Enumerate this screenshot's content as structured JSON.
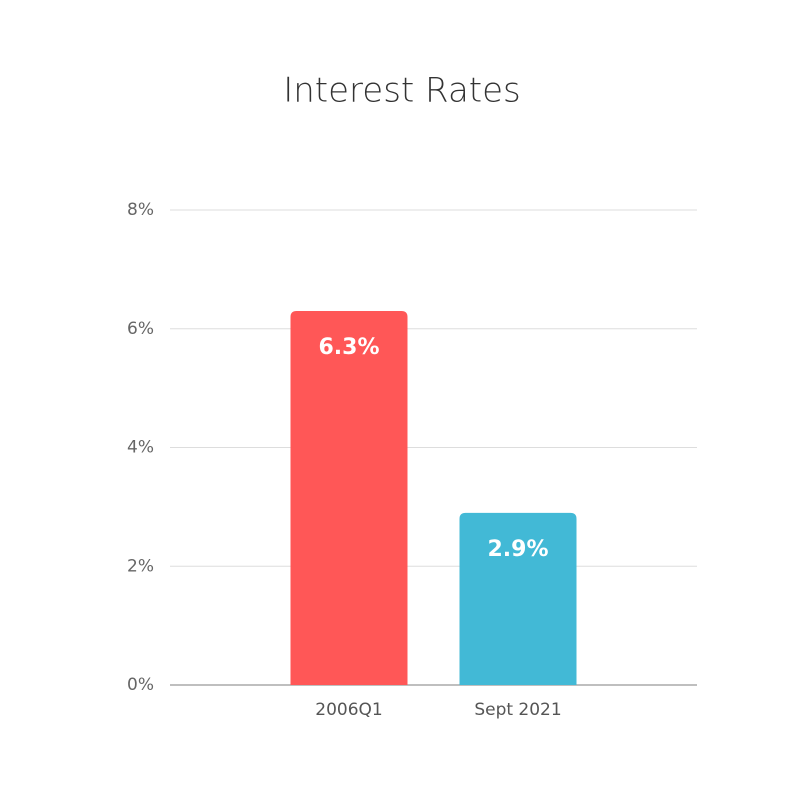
{
  "chart_data": {
    "type": "bar",
    "title": "Interest Rates",
    "categories": [
      "2006Q1",
      "Sept 2021"
    ],
    "values": [
      6.3,
      2.9
    ],
    "value_labels": [
      "6.3%",
      "2.9%"
    ],
    "colors": [
      "#ff5757",
      "#42b9d6"
    ],
    "ylim": [
      0,
      8
    ],
    "yticks": [
      {
        "value": 0,
        "label": "0%"
      },
      {
        "value": 2,
        "label": "2%"
      },
      {
        "value": 4,
        "label": "4%"
      },
      {
        "value": 6,
        "label": "6%"
      },
      {
        "value": 8,
        "label": "8%"
      }
    ],
    "grid": true
  }
}
